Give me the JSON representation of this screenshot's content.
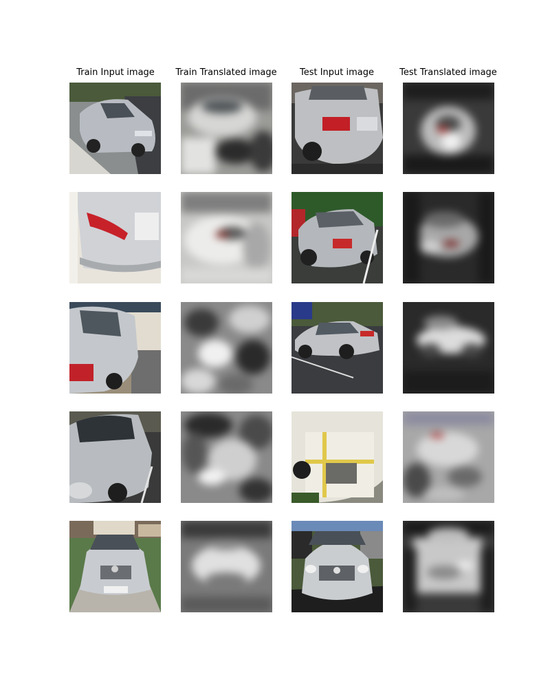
{
  "figure": {
    "columns": [
      {
        "title": "Train Input image"
      },
      {
        "title": "Train Translated image"
      },
      {
        "title": "Test Input image"
      },
      {
        "title": "Test Translated image"
      }
    ],
    "rows": [
      {
        "cells": [
          "car-photo",
          "translated-blur",
          "car-photo",
          "translated-blur"
        ]
      },
      {
        "cells": [
          "car-photo",
          "translated-blur",
          "car-photo",
          "translated-blur"
        ]
      },
      {
        "cells": [
          "car-photo",
          "translated-blur",
          "car-photo",
          "translated-blur"
        ]
      },
      {
        "cells": [
          "car-photo",
          "translated-blur",
          "car-photo",
          "translated-blur"
        ]
      },
      {
        "cells": [
          "car-photo",
          "translated-blur",
          "car-photo",
          "translated-blur"
        ]
      }
    ]
  }
}
